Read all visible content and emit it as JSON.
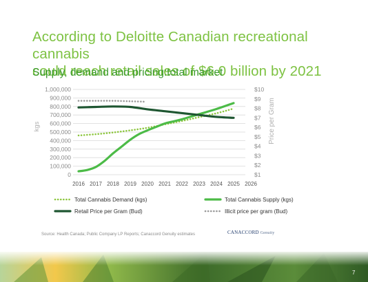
{
  "slide": {
    "headline_line1": "According to Deloitte Canadian recreational cannabis",
    "headline_line2": "could reach retail sales of $6.0 billion by 2021",
    "subhead": "Supply, demand and pricing:total market",
    "source": "Source: Health Canada; Public Company LP Reports; Canaccord Genuity estimates",
    "logo_main": "CANACCORD",
    "logo_sub": "Genuity",
    "page_number": "7"
  },
  "colors": {
    "headline": "#7dc242",
    "demand": "#8dc63f",
    "supply": "#4cbb47",
    "retail": "#1e5631",
    "illicit": "#9a9a9a",
    "axis_text": "#8a8a8a",
    "grid": "#d9d9d9"
  },
  "chart_data": {
    "type": "line",
    "ylabel_left": "kgs",
    "ylabel_right": "Price per Gram",
    "x_ticks": [
      "2016",
      "2017",
      "2018",
      "2019",
      "2020",
      "2021",
      "2022",
      "2023",
      "2024",
      "2025",
      "2026"
    ],
    "y_left_ticks": [
      "0",
      "100,000",
      "200,000",
      "300,000",
      "400,000",
      "500,000",
      "600,000",
      "700,000",
      "800,000",
      "900,000",
      "1,000,000"
    ],
    "y_right_ticks": [
      "$1",
      "$2",
      "$3",
      "$4",
      "$5",
      "$6",
      "$7",
      "$8",
      "$9",
      "$10"
    ],
    "ylim_left": [
      0,
      1000000
    ],
    "ylim_right": [
      1,
      10
    ],
    "xlim": [
      2016,
      2026
    ],
    "grid": true,
    "legend_position": "bottom",
    "series": [
      {
        "name": "Total Cannabis Demand (kgs)",
        "axis": "left",
        "style": "dotted",
        "color_key": "demand",
        "x": [
          2016,
          2017,
          2018,
          2019,
          2020,
          2021,
          2022,
          2023,
          2024,
          2025
        ],
        "values": [
          460000,
          475000,
          495000,
          520000,
          550000,
          590000,
          630000,
          675000,
          720000,
          775000
        ]
      },
      {
        "name": "Total Cannabis Supply (kgs)",
        "axis": "left",
        "style": "solid",
        "color_key": "supply",
        "x": [
          2016,
          2016.5,
          2017,
          2017.5,
          2018,
          2018.5,
          2019,
          2019.5,
          2020,
          2020.5,
          2021,
          2021.5,
          2022,
          2023,
          2024,
          2025
        ],
        "values": [
          40000,
          55000,
          90000,
          160000,
          250000,
          330000,
          410000,
          475000,
          520000,
          560000,
          600000,
          625000,
          650000,
          710000,
          770000,
          840000
        ]
      },
      {
        "name": "Retail Price per Gram (Bud)",
        "axis": "right",
        "style": "solid",
        "color_key": "retail",
        "x": [
          2016,
          2017,
          2018,
          2019,
          2020,
          2021,
          2022,
          2023,
          2024,
          2025
        ],
        "values": [
          8.1,
          8.15,
          8.2,
          8.15,
          7.9,
          7.7,
          7.5,
          7.3,
          7.1,
          7.0
        ]
      },
      {
        "name": "Illicit price per gram (Bud)",
        "axis": "right",
        "style": "dotted",
        "color_key": "illicit",
        "x": [
          2016,
          2017,
          2018,
          2019,
          2019.9
        ],
        "values": [
          8.8,
          8.8,
          8.8,
          8.75,
          8.7
        ]
      }
    ]
  }
}
